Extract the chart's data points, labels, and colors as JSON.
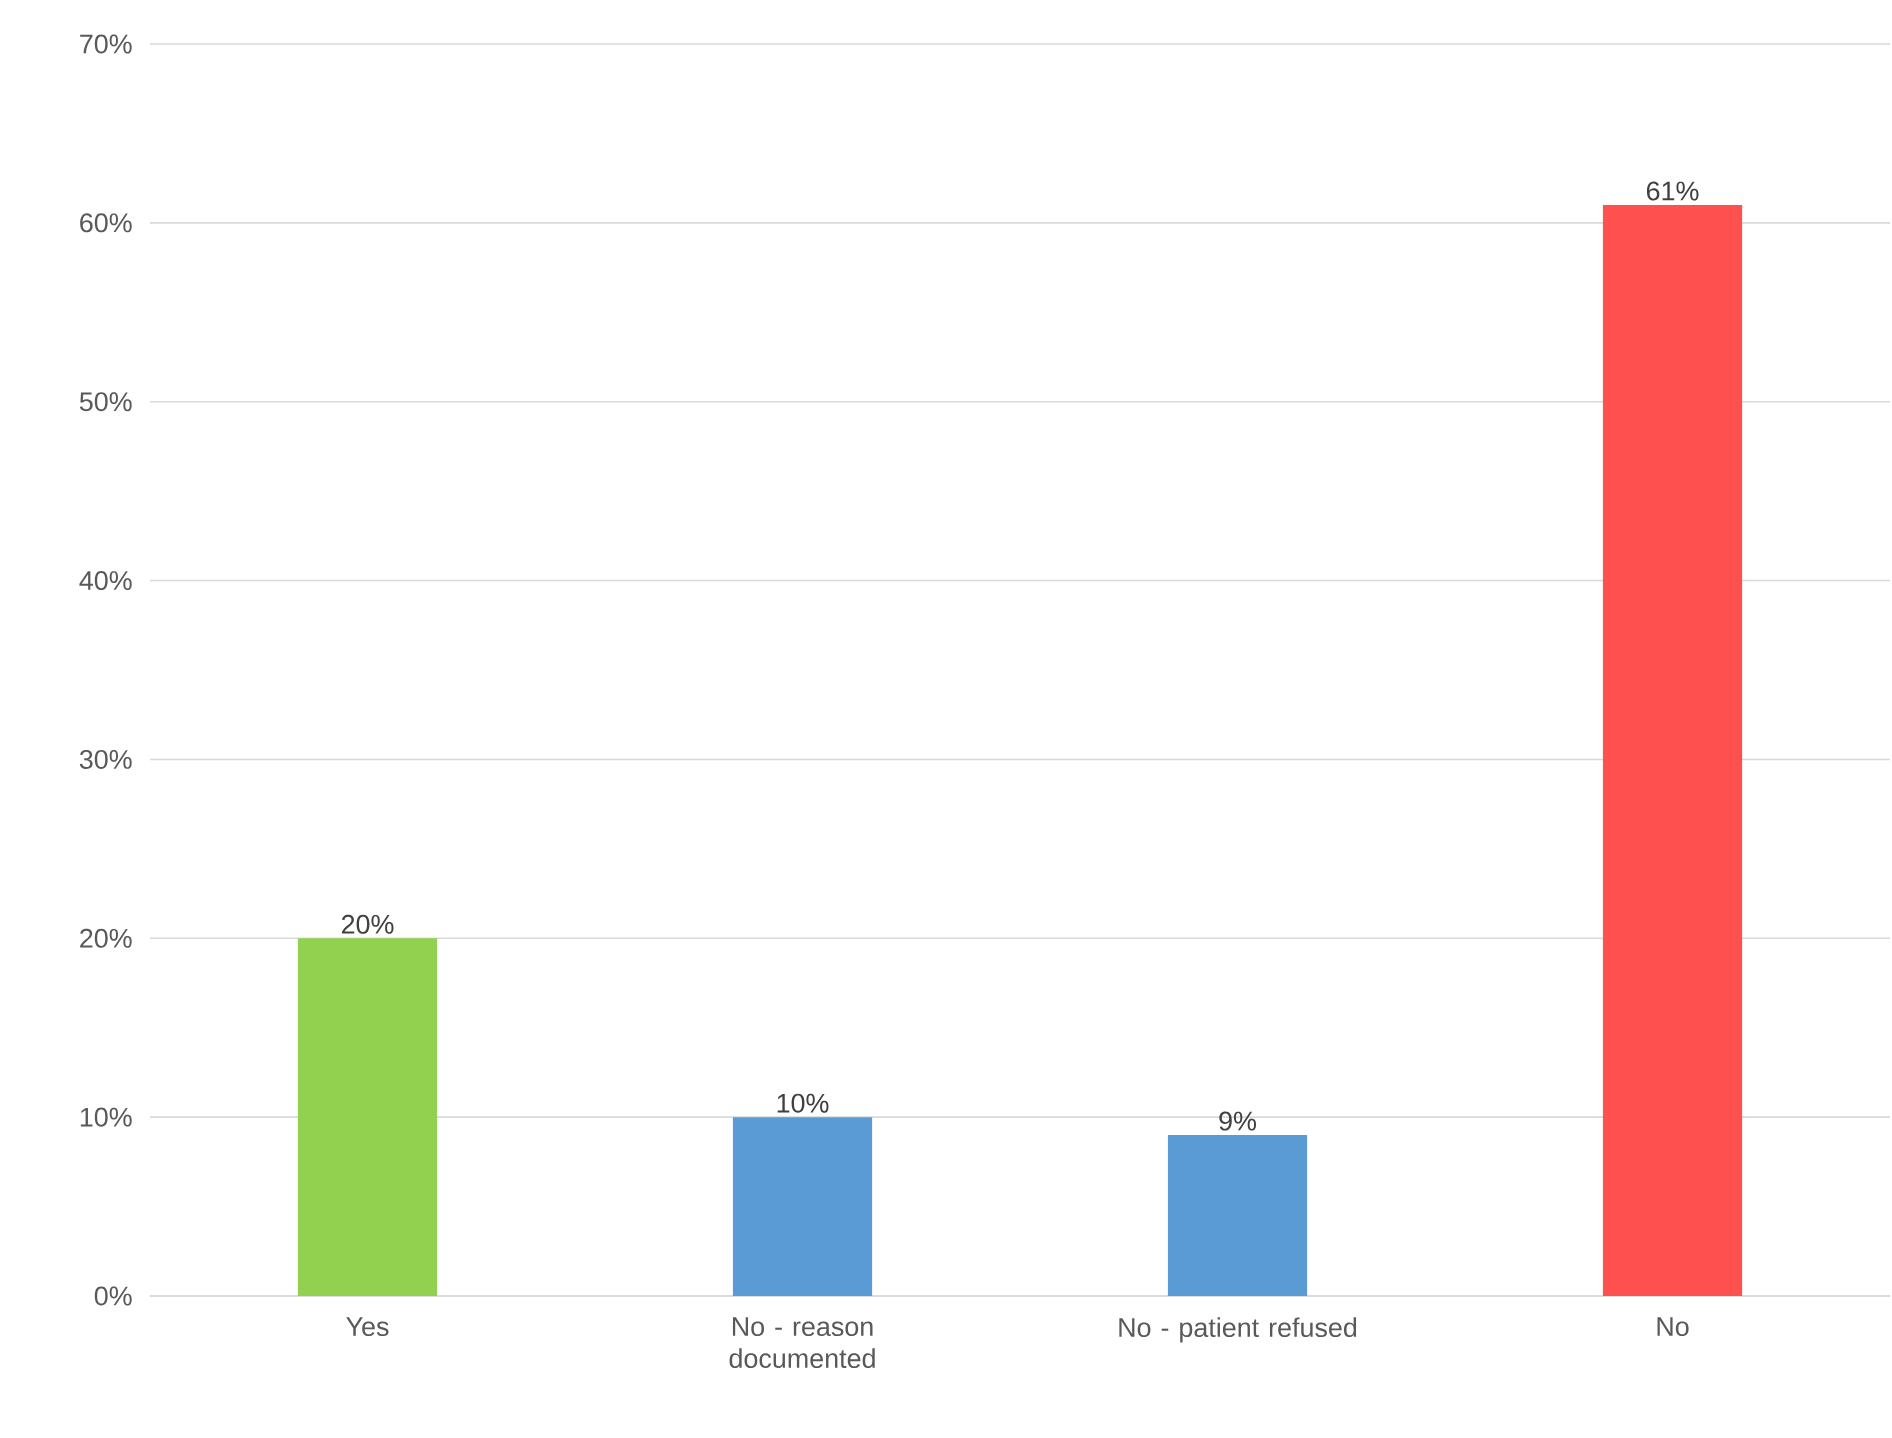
{
  "chart_data": {
    "type": "bar",
    "categories": [
      "Yes",
      "No - reason documented",
      "No - patient refused",
      "No"
    ],
    "values": [
      20,
      10,
      9,
      61
    ],
    "colors": [
      "#92d050",
      "#5b9bd5",
      "#5b9bd5",
      "#ff5050"
    ],
    "value_labels": [
      "20%",
      "10%",
      "9%",
      "61%"
    ],
    "ylim": [
      0,
      70
    ],
    "yticks": [
      {
        "value": 0,
        "label": "0%"
      },
      {
        "value": 10,
        "label": "10%"
      },
      {
        "value": 20,
        "label": "20%"
      },
      {
        "value": 30,
        "label": "30%"
      },
      {
        "value": 40,
        "label": "40%"
      },
      {
        "value": 50,
        "label": "50%"
      },
      {
        "value": 60,
        "label": "60%"
      },
      {
        "value": 70,
        "label": "70%"
      }
    ],
    "grid": "y"
  }
}
